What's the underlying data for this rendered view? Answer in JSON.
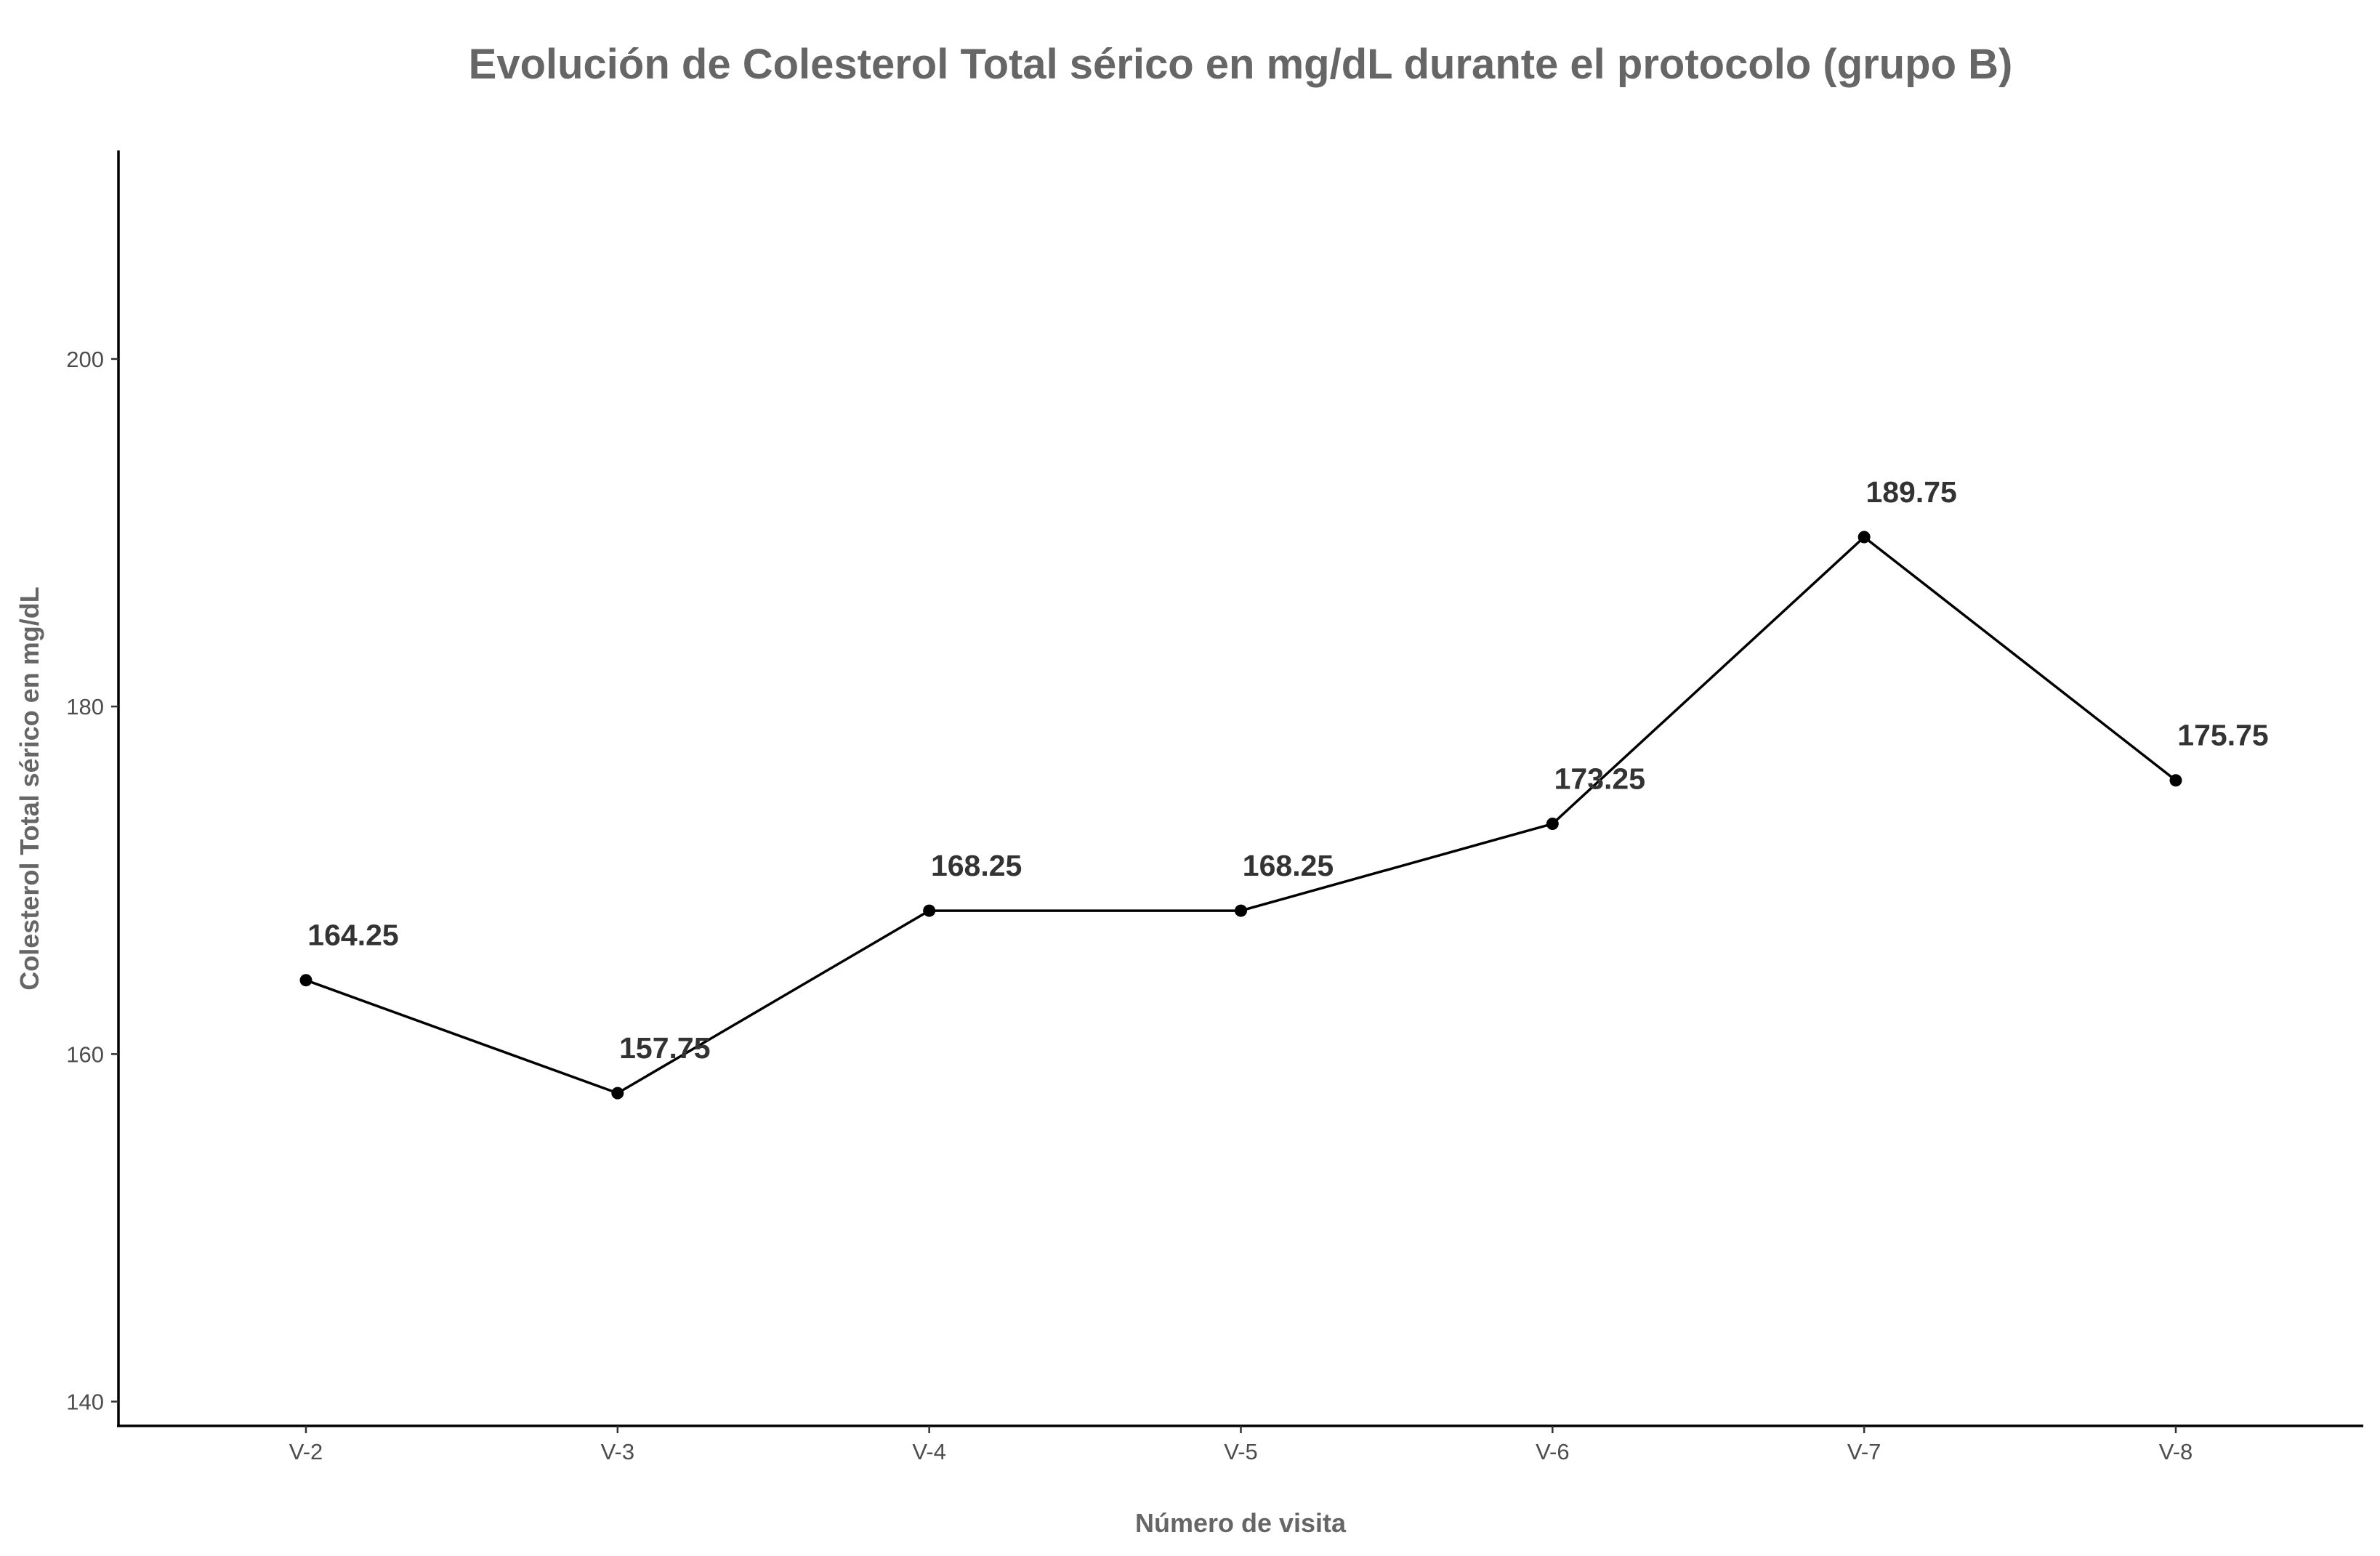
{
  "chart_data": {
    "type": "line",
    "title": "Evolución de Colesterol Total sérico en mg/dL durante el protocolo (grupo B)",
    "xlabel": "Número de visita",
    "ylabel": "Colesterol Total sérico en mg/dL",
    "categories": [
      "V-2",
      "V-3",
      "V-4",
      "V-5",
      "V-6",
      "V-7",
      "V-8"
    ],
    "series": [
      {
        "values": [
          164.25,
          157.75,
          168.25,
          168.25,
          173.25,
          189.75,
          175.75
        ],
        "data_labels": [
          "164.25",
          "157.75",
          "168.25",
          "168.25",
          "173.25",
          "189.75",
          "175.75"
        ]
      }
    ],
    "yticks": [
      140,
      160,
      180,
      200
    ],
    "ytick_labels": [
      "140",
      "160",
      "180",
      "200"
    ],
    "ylim": [
      138.6,
      212
    ],
    "grid": false,
    "legend": "none",
    "colors": {
      "line": "#000000",
      "point": "#000000",
      "title": "#666666"
    }
  }
}
